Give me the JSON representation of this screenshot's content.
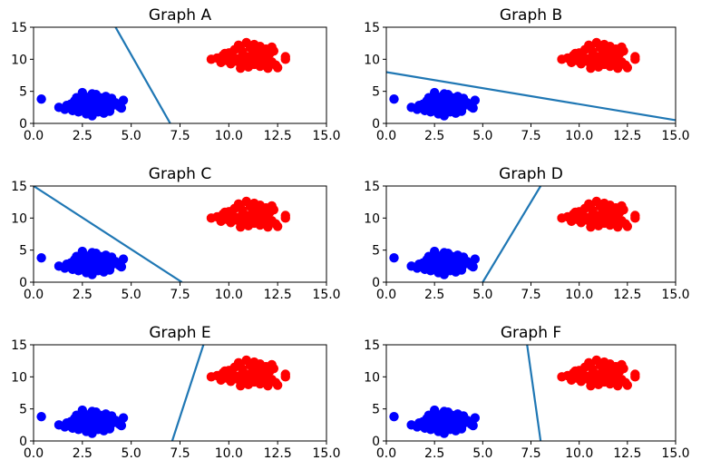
{
  "figure": {
    "grid": "3x2"
  },
  "colors": {
    "class_a": "#0000ff",
    "class_b": "#ff0000",
    "line": "#1f77b4"
  },
  "chart_data": [
    {
      "type": "scatter",
      "title": "Graph A",
      "xlim": [
        0,
        15
      ],
      "ylim": [
        0,
        15
      ],
      "xticks": [
        "0.0",
        "2.5",
        "5.0",
        "7.5",
        "10.0",
        "12.5",
        "15.0"
      ],
      "yticks": [
        "0",
        "5",
        "10",
        "15"
      ],
      "line": {
        "x": [
          4.2,
          7.0
        ],
        "y": [
          15.0,
          0.0
        ]
      }
    },
    {
      "type": "scatter",
      "title": "Graph B",
      "xlim": [
        0,
        15
      ],
      "ylim": [
        0,
        15
      ],
      "xticks": [
        "0.0",
        "2.5",
        "5.0",
        "7.5",
        "10.0",
        "12.5",
        "15.0"
      ],
      "yticks": [
        "0",
        "5",
        "10",
        "15"
      ],
      "line": {
        "x": [
          0.0,
          15.0
        ],
        "y": [
          8.0,
          0.5
        ]
      }
    },
    {
      "type": "scatter",
      "title": "Graph C",
      "xlim": [
        0,
        15
      ],
      "ylim": [
        0,
        15
      ],
      "xticks": [
        "0.0",
        "2.5",
        "5.0",
        "7.5",
        "10.0",
        "12.5",
        "15.0"
      ],
      "yticks": [
        "0",
        "5",
        "10",
        "15"
      ],
      "line": {
        "x": [
          0.0,
          7.6
        ],
        "y": [
          15.0,
          0.0
        ]
      }
    },
    {
      "type": "scatter",
      "title": "Graph D",
      "xlim": [
        0,
        15
      ],
      "ylim": [
        0,
        15
      ],
      "xticks": [
        "0.0",
        "2.5",
        "5.0",
        "7.5",
        "10.0",
        "12.5",
        "15.0"
      ],
      "yticks": [
        "0",
        "5",
        "10",
        "15"
      ],
      "line": {
        "x": [
          5.0,
          8.0
        ],
        "y": [
          0.0,
          15.0
        ]
      }
    },
    {
      "type": "scatter",
      "title": "Graph E",
      "xlim": [
        0,
        15
      ],
      "ylim": [
        0,
        15
      ],
      "xticks": [
        "0.0",
        "2.5",
        "5.0",
        "7.5",
        "10.0",
        "12.5",
        "15.0"
      ],
      "yticks": [
        "0",
        "5",
        "10",
        "15"
      ],
      "line": {
        "x": [
          7.1,
          8.7
        ],
        "y": [
          0.0,
          15.0
        ]
      }
    },
    {
      "type": "scatter",
      "title": "Graph F",
      "xlim": [
        0,
        15
      ],
      "ylim": [
        0,
        15
      ],
      "xticks": [
        "0.0",
        "2.5",
        "5.0",
        "7.5",
        "10.0",
        "12.5",
        "15.0"
      ],
      "yticks": [
        "0",
        "5",
        "10",
        "15"
      ],
      "line": {
        "x": [
          7.3,
          8.0
        ],
        "y": [
          15.0,
          0.0
        ]
      }
    }
  ],
  "scatter_points": {
    "blue": [
      [
        0.4,
        3.8
      ],
      [
        1.3,
        2.5
      ],
      [
        1.6,
        2.2
      ],
      [
        1.7,
        2.8
      ],
      [
        1.9,
        3.0
      ],
      [
        2.0,
        2.0
      ],
      [
        2.1,
        3.5
      ],
      [
        2.2,
        2.6
      ],
      [
        2.3,
        1.8
      ],
      [
        2.4,
        3.2
      ],
      [
        2.5,
        4.8
      ],
      [
        2.5,
        2.3
      ],
      [
        2.6,
        3.8
      ],
      [
        2.6,
        2.9
      ],
      [
        2.7,
        1.5
      ],
      [
        2.8,
        3.4
      ],
      [
        2.8,
        2.5
      ],
      [
        2.9,
        4.2
      ],
      [
        2.9,
        2.0
      ],
      [
        3.0,
        3.0
      ],
      [
        3.0,
        1.2
      ],
      [
        3.1,
        3.8
      ],
      [
        3.1,
        2.6
      ],
      [
        3.2,
        4.5
      ],
      [
        3.2,
        2.2
      ],
      [
        3.3,
        3.3
      ],
      [
        3.3,
        1.8
      ],
      [
        3.4,
        2.8
      ],
      [
        3.4,
        4.0
      ],
      [
        3.5,
        3.5
      ],
      [
        3.5,
        2.4
      ],
      [
        3.6,
        3.0
      ],
      [
        3.6,
        1.6
      ],
      [
        3.7,
        4.2
      ],
      [
        3.7,
        2.6
      ],
      [
        3.8,
        3.4
      ],
      [
        3.9,
        2.2
      ],
      [
        4.0,
        3.9
      ],
      [
        4.1,
        2.9
      ],
      [
        4.2,
        3.2
      ],
      [
        4.4,
        2.6
      ],
      [
        4.6,
        3.6
      ],
      [
        4.5,
        2.4
      ],
      [
        2.2,
        4.0
      ],
      [
        1.8,
        2.4
      ],
      [
        3.0,
        4.6
      ],
      [
        2.7,
        3.7
      ],
      [
        3.9,
        1.9
      ]
    ],
    "red": [
      [
        9.1,
        10.0
      ],
      [
        9.4,
        10.2
      ],
      [
        9.6,
        9.5
      ],
      [
        9.7,
        10.6
      ],
      [
        9.9,
        9.8
      ],
      [
        10.0,
        11.0
      ],
      [
        10.1,
        9.3
      ],
      [
        10.2,
        10.4
      ],
      [
        10.3,
        11.5
      ],
      [
        10.4,
        9.7
      ],
      [
        10.5,
        12.2
      ],
      [
        10.5,
        10.1
      ],
      [
        10.6,
        8.6
      ],
      [
        10.7,
        11.2
      ],
      [
        10.8,
        9.4
      ],
      [
        10.9,
        12.6
      ],
      [
        10.9,
        10.4
      ],
      [
        11.0,
        8.8
      ],
      [
        11.1,
        11.8
      ],
      [
        11.1,
        9.9
      ],
      [
        11.2,
        10.8
      ],
      [
        11.3,
        12.3
      ],
      [
        11.3,
        9.2
      ],
      [
        11.4,
        11.4
      ],
      [
        11.5,
        10.2
      ],
      [
        11.6,
        8.9
      ],
      [
        11.6,
        12.0
      ],
      [
        11.7,
        10.7
      ],
      [
        11.8,
        9.5
      ],
      [
        11.9,
        11.6
      ],
      [
        11.9,
        10.0
      ],
      [
        12.0,
        8.6
      ],
      [
        12.1,
        10.9
      ],
      [
        12.2,
        9.6
      ],
      [
        12.3,
        11.3
      ],
      [
        12.4,
        9.1
      ],
      [
        12.5,
        8.7
      ],
      [
        12.9,
        10.0
      ],
      [
        12.9,
        10.4
      ],
      [
        12.2,
        11.9
      ],
      [
        11.5,
        11.0
      ],
      [
        10.6,
        11.6
      ],
      [
        10.0,
        10.6
      ],
      [
        9.8,
        10.9
      ]
    ]
  }
}
